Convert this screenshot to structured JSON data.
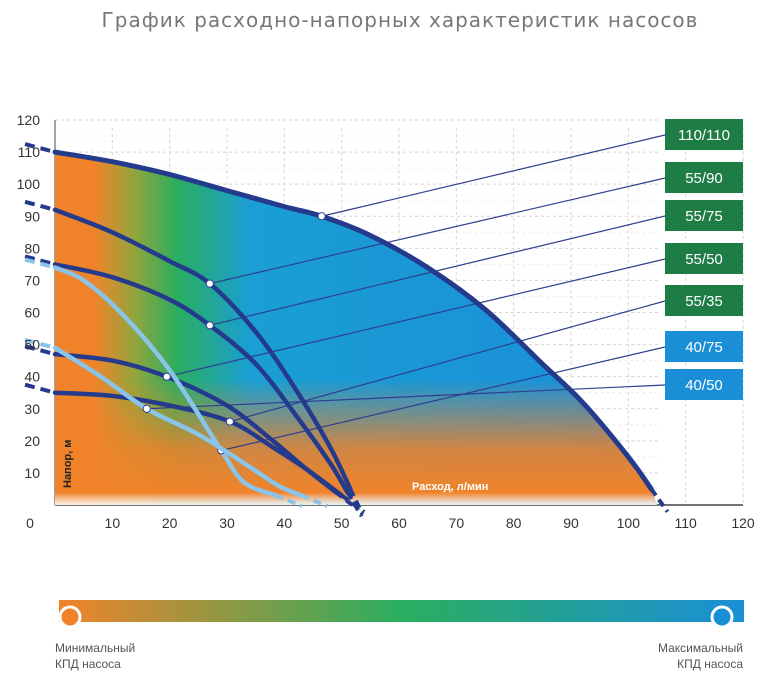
{
  "title": "График расходно-напорных характеристик насосов",
  "legend": {
    "min_line1": "Минимальный",
    "min_line2": "КПД насоса",
    "max_line1": "Максимальный",
    "max_line2": "КПД насоса",
    "color_min": "#F0832A",
    "color_mid": "#2AAE5F",
    "color_max": "#1A8FD8"
  },
  "chart_data": {
    "type": "line",
    "xlabel": "Расход, л/мин",
    "ylabel": "Напор, м",
    "xlim": [
      0,
      120
    ],
    "ylim": [
      0,
      120
    ],
    "x_ticks": [
      0,
      10,
      20,
      30,
      40,
      50,
      60,
      70,
      80,
      90,
      100,
      110,
      120
    ],
    "y_ticks": [
      10,
      20,
      30,
      40,
      50,
      60,
      70,
      80,
      90,
      100,
      110,
      120
    ],
    "grid": true,
    "series": [
      {
        "name": "110/110",
        "color": "#1E7C45",
        "line_color": "#243A8C",
        "x": [
          0,
          10,
          20,
          30,
          40,
          46.5,
          55,
          65,
          75,
          85,
          92,
          100,
          104
        ],
        "y": [
          110,
          107,
          103,
          98,
          93,
          90,
          84,
          74,
          61,
          44,
          32,
          15,
          5
        ],
        "marker_x": 46.5,
        "marker_y": 90
      },
      {
        "name": "55/90",
        "color": "#1E7C45",
        "line_color": "#243A8C",
        "x": [
          0,
          10,
          20,
          27,
          35,
          42,
          48,
          51.5
        ],
        "y": [
          92,
          85,
          76,
          69,
          54,
          36,
          18,
          5
        ],
        "marker_x": 27,
        "marker_y": 69
      },
      {
        "name": "55/75",
        "color": "#1E7C45",
        "line_color": "#243A8C",
        "x": [
          0,
          10,
          20,
          27,
          35,
          42,
          48,
          51
        ],
        "y": [
          75,
          71,
          64,
          56,
          44,
          28,
          13,
          4
        ],
        "marker_x": 27,
        "marker_y": 56
      },
      {
        "name": "55/50",
        "color": "#1E7C45",
        "line_color": "#243A8C",
        "x": [
          0,
          10,
          19.5,
          30,
          38,
          44,
          49
        ],
        "y": [
          47,
          45,
          40,
          31,
          20,
          11,
          4
        ],
        "marker_x": 19.5,
        "marker_y": 40
      },
      {
        "name": "55/35",
        "color": "#1E7C45",
        "line_color": "#243A8C",
        "x": [
          0,
          10,
          20,
          30.5,
          38,
          44,
          50
        ],
        "y": [
          35,
          34,
          31,
          26,
          18,
          11,
          3
        ],
        "marker_x": 30.5,
        "marker_y": 26
      },
      {
        "name": "40/75",
        "color": "#1A8FD8",
        "line_color": "#8AC4E8",
        "x": [
          0,
          5,
          12,
          20,
          29,
          33,
          38.5
        ],
        "y": [
          74,
          70,
          59,
          42,
          17,
          7,
          3
        ],
        "marker_x": 29,
        "marker_y": 17
      },
      {
        "name": "40/50",
        "color": "#1A8FD8",
        "line_color": "#8AC4E8",
        "x": [
          0,
          8,
          16,
          25,
          33,
          39,
          43
        ],
        "y": [
          49,
          40,
          30,
          22,
          13,
          6,
          3
        ],
        "marker_x": 16,
        "marker_y": 30
      }
    ]
  }
}
